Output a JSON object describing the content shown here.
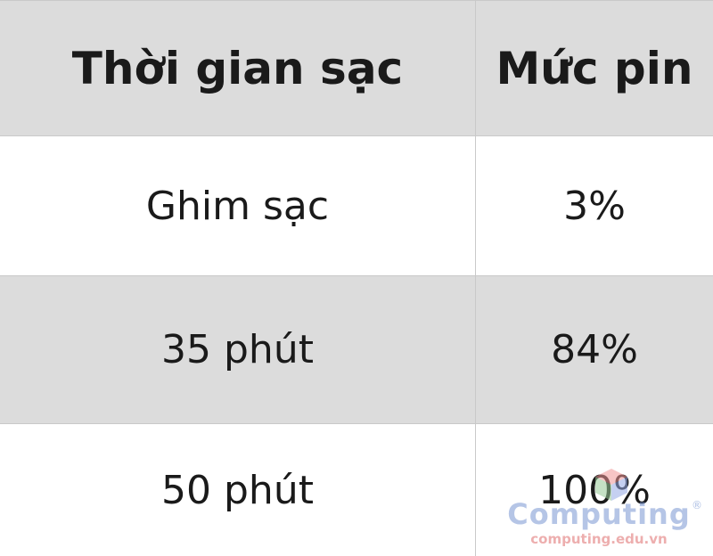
{
  "table": {
    "headers": [
      "Thời gian sạc",
      "Mức pin"
    ],
    "rows": [
      [
        "Ghim sạc",
        "3%"
      ],
      [
        "35 phút",
        "84%"
      ],
      [
        "50 phút",
        "100%"
      ]
    ]
  },
  "watermark": {
    "brand": "Computing",
    "url": "computing.edu.vn",
    "registered": "®"
  },
  "colors": {
    "header_bg": "#dcdcdc",
    "striped_bg": "#dcdcdc",
    "plain_bg": "#ffffff",
    "text": "#1a1a1a"
  }
}
